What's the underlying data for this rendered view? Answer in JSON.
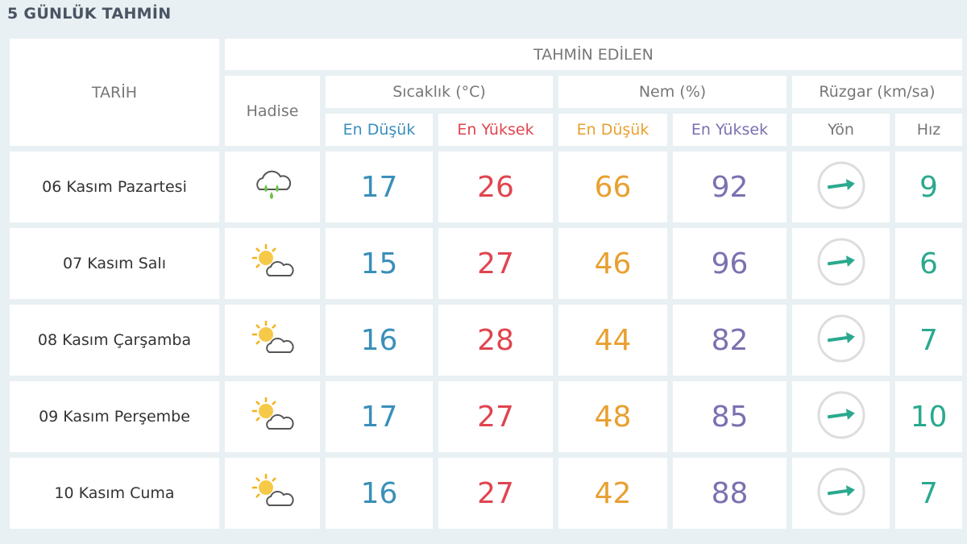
{
  "title": "5 GÜNLÜK TAHMİN",
  "headers": {
    "tarih": "TARİH",
    "tahmin": "TAHMİN EDİLEN",
    "hadise": "Hadise",
    "sicaklik": "Sıcaklık (°C)",
    "nem": "Nem (%)",
    "ruzgar": "Rüzgar (km/sa)",
    "en_dusuk": "En Düşük",
    "en_yuksek": "En Yüksek",
    "yon": "Yön",
    "hiz": "Hız"
  },
  "colors": {
    "low_temp": "#3a8fba",
    "high_temp": "#e0454f",
    "low_hum": "#e8a030",
    "high_hum": "#7b70b0",
    "wind": "#2aa98e"
  },
  "rows": [
    {
      "date": "06 Kasım Pazartesi",
      "icon": "rain-cloud-icon",
      "t_min": "17",
      "t_max": "26",
      "h_min": "66",
      "h_max": "92",
      "wind_dir": "east",
      "wind_speed": "9"
    },
    {
      "date": "07 Kasım Salı",
      "icon": "partly-cloudy-icon",
      "t_min": "15",
      "t_max": "27",
      "h_min": "46",
      "h_max": "96",
      "wind_dir": "east",
      "wind_speed": "6"
    },
    {
      "date": "08 Kasım Çarşamba",
      "icon": "partly-cloudy-icon",
      "t_min": "16",
      "t_max": "28",
      "h_min": "44",
      "h_max": "82",
      "wind_dir": "east",
      "wind_speed": "7"
    },
    {
      "date": "09 Kasım Perşembe",
      "icon": "partly-cloudy-icon",
      "t_min": "17",
      "t_max": "27",
      "h_min": "48",
      "h_max": "85",
      "wind_dir": "east",
      "wind_speed": "10"
    },
    {
      "date": "10 Kasım Cuma",
      "icon": "partly-cloudy-icon",
      "t_min": "16",
      "t_max": "27",
      "h_min": "42",
      "h_max": "88",
      "wind_dir": "east",
      "wind_speed": "7"
    }
  ]
}
